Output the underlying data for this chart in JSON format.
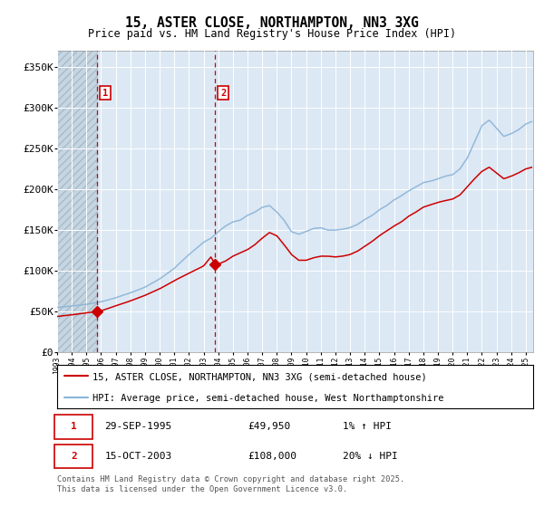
{
  "title": "15, ASTER CLOSE, NORTHAMPTON, NN3 3XG",
  "subtitle": "Price paid vs. HM Land Registry's House Price Index (HPI)",
  "background_color": "#ffffff",
  "plot_bg_color": "#dce8f4",
  "red_line_color": "#cc0000",
  "blue_line_color": "#8ab4d8",
  "dashed_line_color": "#cc0000",
  "annotation_box_color": "#cc0000",
  "sale1_date": 1995.75,
  "sale1_price": 49950,
  "sale2_date": 2003.79,
  "sale2_price": 108000,
  "ylim": [
    0,
    370000
  ],
  "xlim": [
    1993.0,
    2025.5
  ],
  "yticks": [
    0,
    50000,
    100000,
    150000,
    200000,
    250000,
    300000,
    350000
  ],
  "ytick_labels": [
    "£0",
    "£50K",
    "£100K",
    "£150K",
    "£200K",
    "£250K",
    "£300K",
    "£350K"
  ],
  "legend_line1": "15, ASTER CLOSE, NORTHAMPTON, NN3 3XG (semi-detached house)",
  "legend_line2": "HPI: Average price, semi-detached house, West Northamptonshire",
  "table_row1": [
    "1",
    "29-SEP-1995",
    "£49,950",
    "1% ↑ HPI"
  ],
  "table_row2": [
    "2",
    "15-OCT-2003",
    "£108,000",
    "20% ↓ HPI"
  ],
  "footer": "Contains HM Land Registry data © Crown copyright and database right 2025.\nThis data is licensed under the Open Government Licence v3.0."
}
